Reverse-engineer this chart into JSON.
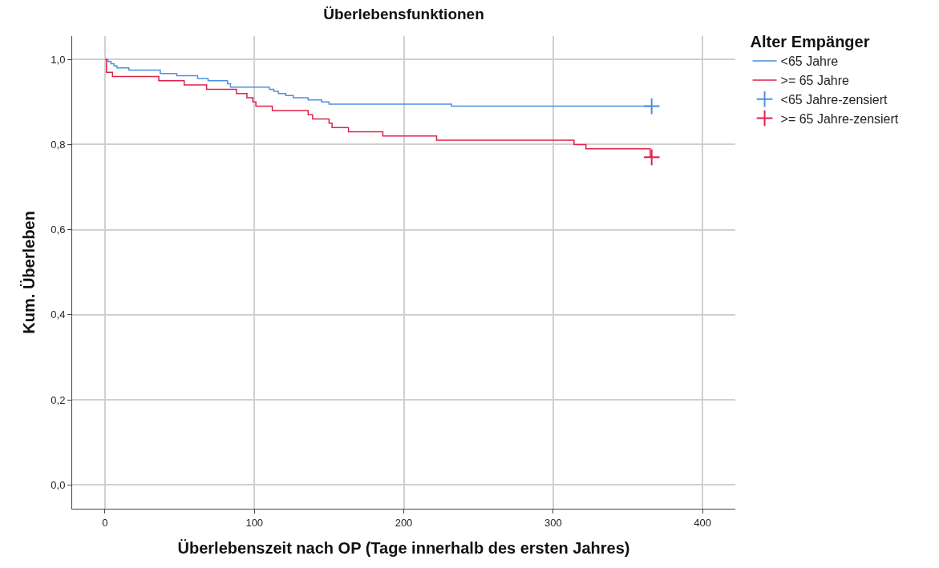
{
  "chart_data": {
    "type": "step",
    "title": "Überlebensfunktionen",
    "xlabel": "Überlebenszeit nach OP (Tage innerhalb des ersten Jahres)",
    "ylabel": "Kum. Überleben",
    "legend_title": "Alter Empänger",
    "legend": "top right",
    "grid": true,
    "xlim": [
      -22,
      422
    ],
    "xticks": [
      0,
      100,
      200,
      300,
      400
    ],
    "ylim": [
      -0.056,
      1.055
    ],
    "yticks": [
      {
        "value": 0,
        "label": "0,0"
      },
      {
        "value": 0.2,
        "label": "0,2"
      },
      {
        "value": 0.4,
        "label": "0,4"
      },
      {
        "value": 0.6,
        "label": "0,6"
      },
      {
        "value": 0.8,
        "label": "0,8"
      },
      {
        "value": 1,
        "label": "1,0"
      }
    ],
    "series": [
      {
        "name": "<65 Jahre",
        "color": "#4a90e2",
        "x": [
          0,
          2,
          4,
          6,
          8,
          16,
          37,
          48,
          62,
          69,
          82,
          84,
          110,
          113,
          116,
          121,
          126,
          136,
          145,
          150,
          232,
          366
        ],
        "values": [
          1.0,
          0.995,
          0.99,
          0.985,
          0.98,
          0.975,
          0.967,
          0.962,
          0.955,
          0.95,
          0.943,
          0.935,
          0.93,
          0.925,
          0.92,
          0.915,
          0.91,
          0.905,
          0.9,
          0.895,
          0.89,
          0.89
        ]
      },
      {
        "name": ">= 65 Jahre",
        "color": "#e0204a",
        "x": [
          0,
          1,
          5,
          36,
          53,
          68,
          88,
          95,
          99,
          101,
          112,
          136,
          139,
          150,
          152,
          163,
          186,
          222,
          314,
          322,
          365,
          366
        ],
        "values": [
          1.0,
          0.97,
          0.96,
          0.95,
          0.94,
          0.93,
          0.92,
          0.91,
          0.9,
          0.89,
          0.88,
          0.87,
          0.86,
          0.85,
          0.84,
          0.83,
          0.82,
          0.81,
          0.8,
          0.79,
          0.77,
          0.77
        ]
      },
      {
        "name": "<65 Jahre-zensiert",
        "type": "scatter",
        "marker": "cross",
        "color": "#4a90e2",
        "x": [
          366
        ],
        "values": [
          0.89
        ]
      },
      {
        "name": ">= 65 Jahre-zensiert",
        "type": "scatter",
        "marker": "cross",
        "color": "#e0204a",
        "x": [
          366
        ],
        "values": [
          0.77
        ]
      }
    ]
  }
}
